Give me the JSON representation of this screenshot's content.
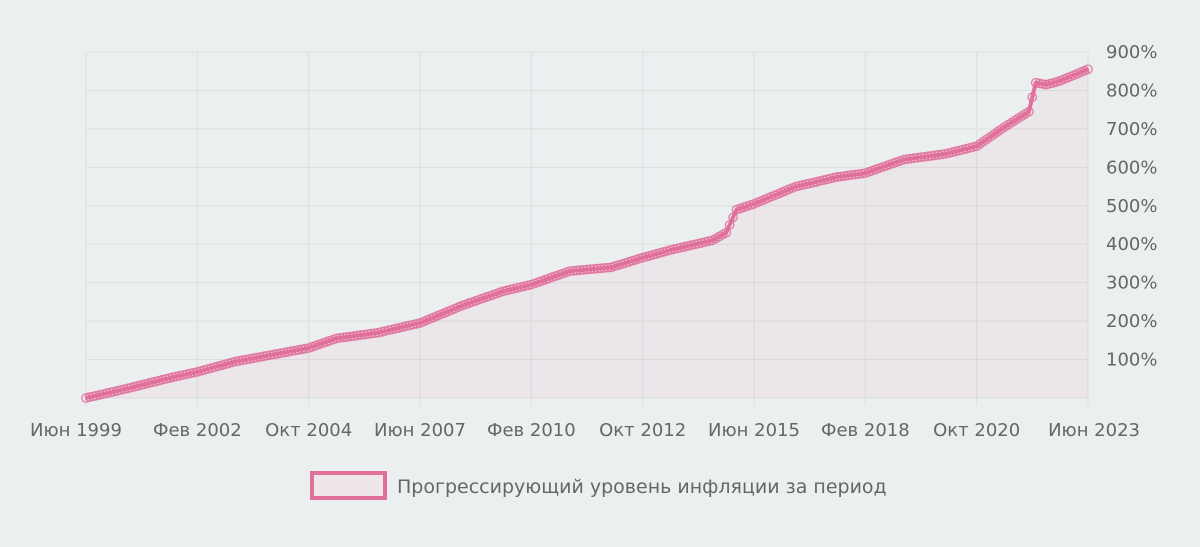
{
  "colors": {
    "background": "#eceff0",
    "grid": "#dcdfe0",
    "line": "#e07099",
    "fill": "rgba(224,112,153,0.07)",
    "text": "#666666"
  },
  "chart_data": {
    "type": "line",
    "title": "",
    "xlabel": "",
    "ylabel": "",
    "grid": true,
    "legend_position": "bottom",
    "y_axis_side": "right",
    "fill_area": true,
    "ylim": [
      0,
      900
    ],
    "y_ticks": [
      100,
      200,
      300,
      400,
      500,
      600,
      700,
      800,
      900
    ],
    "y_tick_labels": [
      "100%",
      "200%",
      "300%",
      "400%",
      "500%",
      "600%",
      "700%",
      "800%",
      "900%"
    ],
    "x_range": [
      "1999-06",
      "2023-06"
    ],
    "x_ticks": [
      "1999-06",
      "2002-02",
      "2004-10",
      "2007-06",
      "2010-02",
      "2012-10",
      "2015-06",
      "2018-02",
      "2020-10",
      "2023-06"
    ],
    "x_tick_labels": [
      "Июн 1999",
      "Фев 2002",
      "Окт 2004",
      "Июн 2007",
      "Фев 2010",
      "Окт 2012",
      "Июн 2015",
      "Фев 2018",
      "Окт 2020",
      "Июн 2023"
    ],
    "series": [
      {
        "name": "Прогрессирующий уровень инфляции за период",
        "x": [
          "1999-06",
          "2000-06",
          "2001-06",
          "2002-02",
          "2003-01",
          "2004-01",
          "2004-10",
          "2005-06",
          "2006-06",
          "2007-06",
          "2008-06",
          "2009-06",
          "2010-02",
          "2011-01",
          "2012-01",
          "2012-10",
          "2013-06",
          "2014-06",
          "2014-10",
          "2015-01",
          "2015-06",
          "2016-06",
          "2017-06",
          "2018-02",
          "2019-01",
          "2020-01",
          "2020-10",
          "2021-06",
          "2022-01",
          "2022-03",
          "2022-06",
          "2022-10",
          "2023-06"
        ],
        "y": [
          0,
          25,
          52,
          68,
          95,
          115,
          130,
          155,
          170,
          195,
          240,
          278,
          295,
          330,
          340,
          365,
          385,
          410,
          430,
          490,
          505,
          550,
          575,
          585,
          620,
          635,
          655,
          705,
          745,
          820,
          815,
          825,
          855
        ]
      }
    ]
  }
}
